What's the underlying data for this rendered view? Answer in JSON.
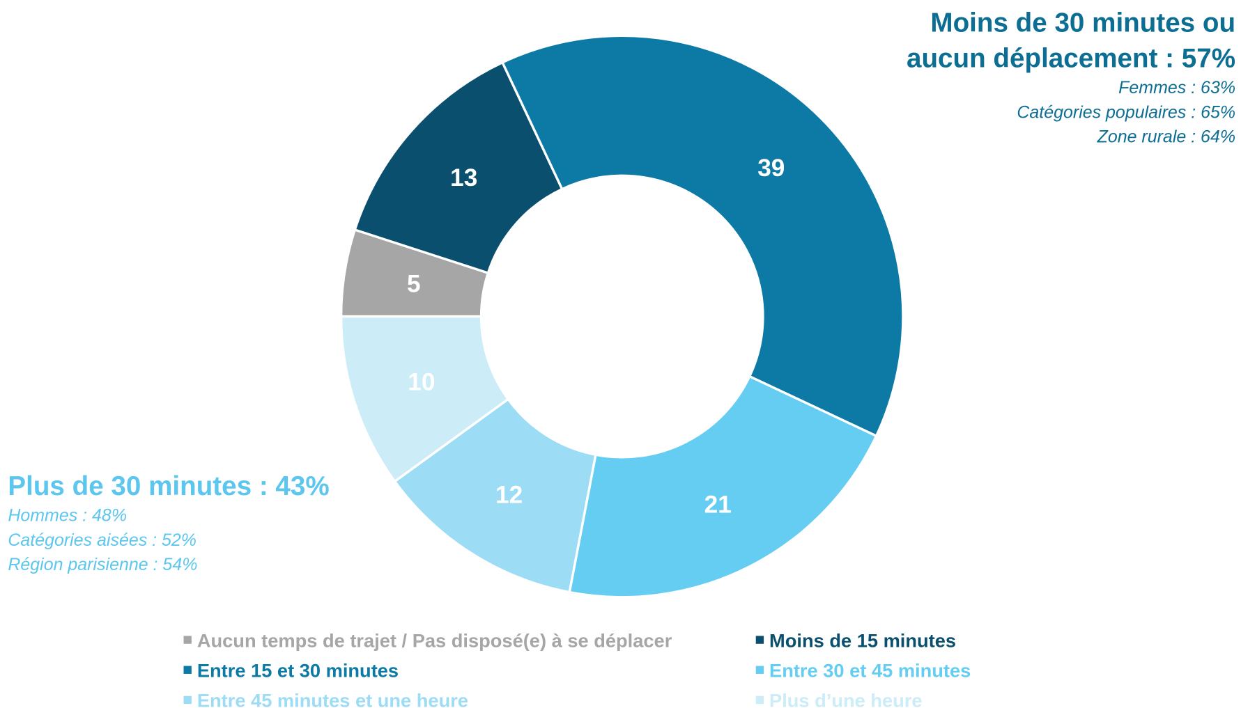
{
  "chart_data": {
    "type": "donut",
    "categories": [
      "Aucun temps de trajet / Pas disposé(e) à se déplacer",
      "Moins de 15 minutes",
      "Entre 15 et 30 minutes",
      "Entre 30 et 45 minutes",
      "Entre 45 minutes et une heure",
      "Plus d’une heure"
    ],
    "values": [
      5,
      13,
      39,
      21,
      12,
      10
    ],
    "colors": [
      "#a6a6a6",
      "#0a506e",
      "#0d7aa6",
      "#66cdf2",
      "#9cdcf5",
      "#ccecf8"
    ],
    "annotations": [
      {
        "title": [
          "Moins de 30 minutes ou",
          "aucun déplacement : 57%"
        ],
        "lines": [
          "Femmes : 63%",
          "Catégories populaires : 65%",
          "Zone rurale : 64%"
        ],
        "color": "#0d6e94"
      },
      {
        "title": [
          "Plus de 30 minutes : 43%"
        ],
        "lines": [
          "Hommes : 48%",
          "Catégories aisées : 52%",
          "Région parisienne : 54%"
        ],
        "color": "#5cc6ee"
      }
    ]
  }
}
